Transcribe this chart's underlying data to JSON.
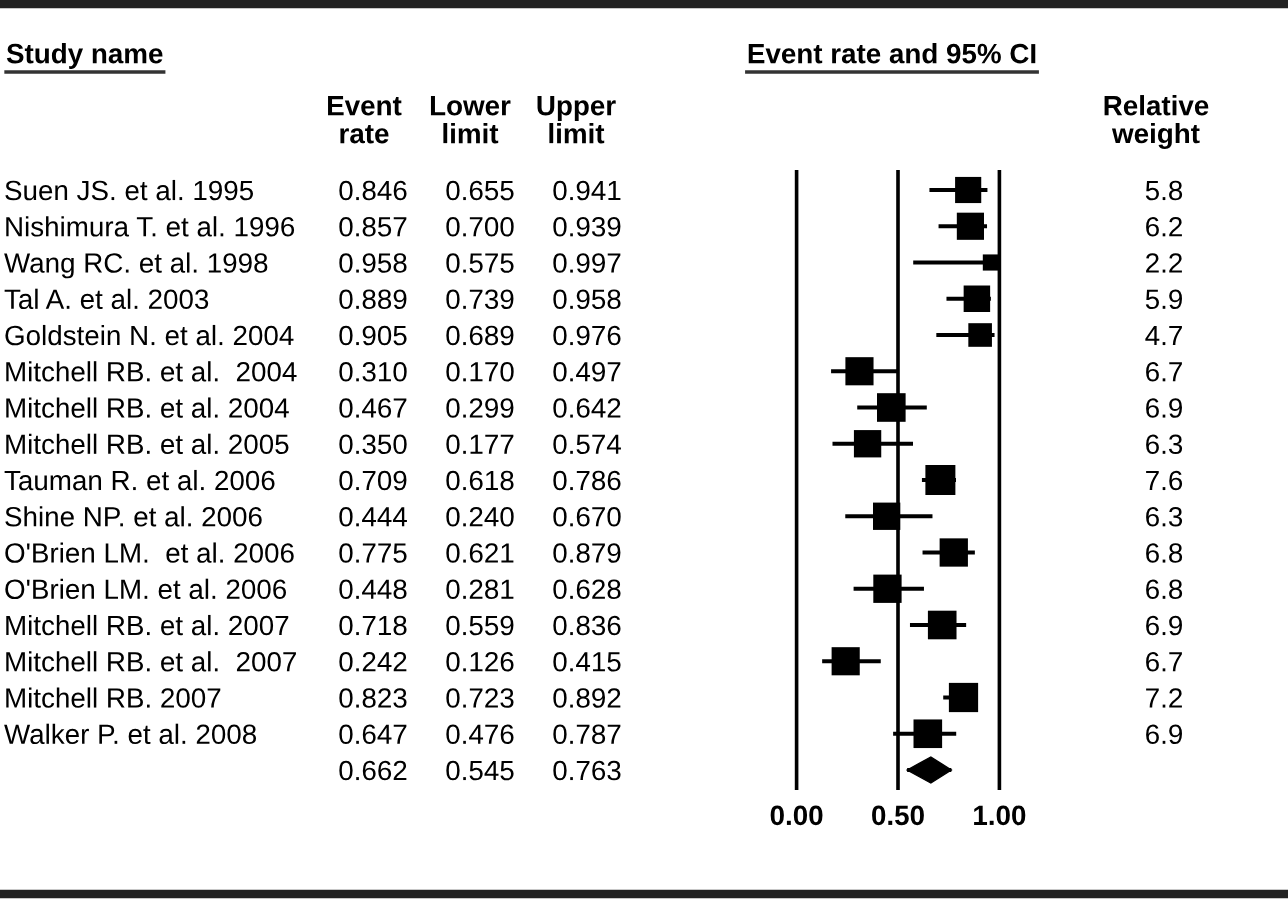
{
  "chart_data": [
    {
      "type": "other",
      "annotations": [
        "Study name"
      ],
      "categories": [
        "Event\nrate",
        "Lower\nlimit",
        "Upper\nlimit"
      ],
      "y_categories": [
        "Suen JS. et al. 1995",
        "Nishimura T. et al. 1996",
        "Wang RC. et al. 1998",
        "Tal A. et al. 2003",
        "Goldstein N. et al. 2004",
        "Mitchell RB. et al.  2004",
        "Mitchell RB. et al. 2004",
        "Mitchell RB. et al. 2005",
        "Tauman R. et al. 2006",
        "Shine NP. et al. 2006",
        "O'Brien LM.  et al. 2006",
        "O'Brien LM. et al. 2006",
        "Mitchell RB. et al. 2007",
        "Mitchell RB. et al.  2007",
        "Mitchell RB. 2007",
        "Walker P. et al. 2008",
        null
      ],
      "cell_labels": [
        [
          "0.846",
          "0.655",
          "0.941"
        ],
        [
          "0.857",
          "0.700",
          "0.939"
        ],
        [
          "0.958",
          "0.575",
          "0.997"
        ],
        [
          "0.889",
          "0.739",
          "0.958"
        ],
        [
          "0.905",
          "0.689",
          "0.976"
        ],
        [
          "0.310",
          "0.170",
          "0.497"
        ],
        [
          "0.467",
          "0.299",
          "0.642"
        ],
        [
          "0.350",
          "0.177",
          "0.574"
        ],
        [
          "0.709",
          "0.618",
          "0.786"
        ],
        [
          "0.444",
          "0.240",
          "0.670"
        ],
        [
          "0.775",
          "0.621",
          "0.879"
        ],
        [
          "0.448",
          "0.281",
          "0.628"
        ],
        [
          "0.718",
          "0.559",
          "0.836"
        ],
        [
          "0.242",
          "0.126",
          "0.415"
        ],
        [
          "0.823",
          "0.723",
          "0.892"
        ],
        [
          "0.647",
          "0.476",
          "0.787"
        ],
        [
          "0.662",
          "0.545",
          "0.763"
        ]
      ]
    },
    {
      "type": "bubble",
      "orientation": "horizontal",
      "xlabel": "Event rate and 95% CI",
      "categories": [
        null,
        null,
        null,
        null,
        null,
        null,
        null,
        null,
        null,
        null,
        null,
        null,
        null,
        null,
        null,
        null,
        null
      ],
      "series": [
        {
          "marker": "square",
          "color": "#000000",
          "values": [
            0.846,
            0.857,
            0.958,
            0.889,
            0.905,
            0.31,
            0.467,
            0.35,
            0.709,
            0.444,
            0.775,
            0.448,
            0.718,
            0.242,
            0.823,
            0.647,
            null
          ],
          "errors": [
            [
              0.655,
              0.941
            ],
            [
              0.7,
              0.939
            ],
            [
              0.575,
              0.997
            ],
            [
              0.739,
              0.958
            ],
            [
              0.689,
              0.976
            ],
            [
              0.17,
              0.497
            ],
            [
              0.299,
              0.642
            ],
            [
              0.177,
              0.574
            ],
            [
              0.618,
              0.786
            ],
            [
              0.24,
              0.67
            ],
            [
              0.621,
              0.879
            ],
            [
              0.281,
              0.628
            ],
            [
              0.559,
              0.836
            ],
            [
              0.126,
              0.415
            ],
            [
              0.723,
              0.892
            ],
            [
              0.476,
              0.787
            ],
            null
          ],
          "sizes": [
            0.76,
            0.82,
            0.29,
            0.78,
            0.62,
            0.88,
            0.91,
            0.83,
            1,
            0.83,
            0.89,
            0.89,
            0.91,
            0.88,
            0.95,
            0.91,
            null
          ]
        },
        {
          "type": "scatter",
          "marker": "diamond",
          "color": "#000000",
          "values": [
            null,
            null,
            null,
            null,
            null,
            null,
            null,
            null,
            null,
            null,
            null,
            null,
            null,
            null,
            null,
            null,
            0.662
          ],
          "errors": [
            null,
            null,
            null,
            null,
            null,
            null,
            null,
            null,
            null,
            null,
            null,
            null,
            null,
            null,
            null,
            null,
            [
              0.545,
              0.763
            ]
          ]
        }
      ],
      "xlim": [
        0,
        1
      ],
      "xticks": [
        {
          "value": 0,
          "label": "0.00"
        },
        {
          "value": 0.5,
          "label": "0.50"
        },
        {
          "value": 1,
          "label": "1.00"
        }
      ],
      "grid": "x"
    },
    {
      "type": "other",
      "categories": [
        "Relative\nweight"
      ],
      "cell_labels": [
        [
          "5.8"
        ],
        [
          "6.2"
        ],
        [
          "2.2"
        ],
        [
          "5.9"
        ],
        [
          "4.7"
        ],
        [
          "6.7"
        ],
        [
          "6.9"
        ],
        [
          "6.3"
        ],
        [
          "7.6"
        ],
        [
          "6.3"
        ],
        [
          "6.8"
        ],
        [
          "6.8"
        ],
        [
          "6.9"
        ],
        [
          "6.7"
        ],
        [
          "7.2"
        ],
        [
          "6.9"
        ],
        [
          null
        ]
      ]
    }
  ]
}
